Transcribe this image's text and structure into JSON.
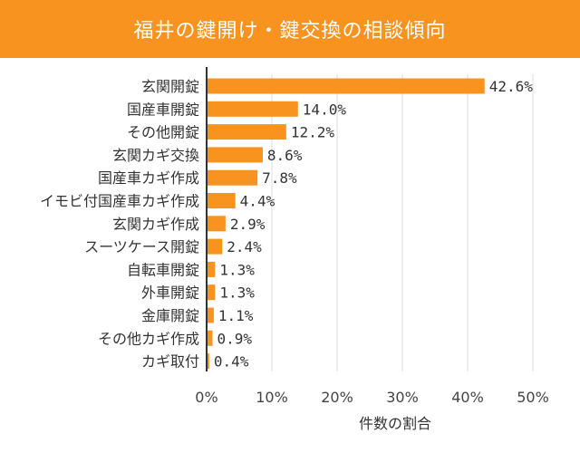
{
  "header": {
    "title": "福井の鍵開け・鍵交換の相談傾向"
  },
  "colors": {
    "accent": "#f7931e",
    "bar": "#f7931e",
    "grid": "#dddddd",
    "axis": "#333333"
  },
  "chart_data": {
    "type": "bar",
    "orientation": "horizontal",
    "title": "福井の鍵開け・鍵交換の相談傾向",
    "xlabel": "件数の割合",
    "ylabel": "",
    "xlim": [
      0,
      50
    ],
    "grid": true,
    "x_ticks": [
      0,
      10,
      20,
      30,
      40,
      50
    ],
    "x_tick_labels": [
      "0%",
      "10%",
      "20%",
      "30%",
      "40%",
      "50%"
    ],
    "categories": [
      "玄関開錠",
      "国産車開錠",
      "その他開錠",
      "玄関カギ交換",
      "国産車カギ作成",
      "イモビ付国産車カギ作成",
      "玄関カギ作成",
      "スーツケース開錠",
      "自転車開錠",
      "外車開錠",
      "金庫開錠",
      "その他カギ作成",
      "カギ取付"
    ],
    "values": [
      42.6,
      14.0,
      12.2,
      8.6,
      7.8,
      4.4,
      2.9,
      2.4,
      1.3,
      1.3,
      1.1,
      0.9,
      0.4
    ],
    "value_labels": [
      "42.6%",
      "14.0%",
      "12.2%",
      "8.6%",
      "7.8%",
      "4.4%",
      "2.9%",
      "2.4%",
      "1.3%",
      "1.3%",
      "1.1%",
      "0.9%",
      "0.4%"
    ]
  }
}
